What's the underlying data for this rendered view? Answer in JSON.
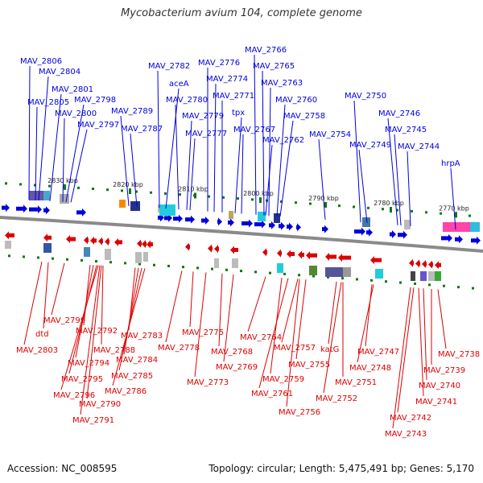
{
  "title": "Mycobacterium avium 104, complete genome",
  "footer": {
    "accession": "Accession: NC_008595",
    "summary": "Topology: circular; Length: 5,475,491 bp; Genes: 5,170"
  },
  "colors": {
    "forward": "#0000dd",
    "reverse": "#dd0000",
    "backbone": "#888888",
    "tick": "#117711"
  },
  "scale": {
    "unit": "kbp",
    "ticks": [
      {
        "label": "2830 kbp",
        "kb": 2830
      },
      {
        "label": "2820 kbp",
        "kb": 2820
      },
      {
        "label": "2810 kbp",
        "kb": 2810
      },
      {
        "label": "2800 kbp",
        "kb": 2800
      },
      {
        "label": "2790 kbp",
        "kb": 2790
      },
      {
        "label": "2780 kbp",
        "kb": 2780
      },
      {
        "label": "2770 kbp",
        "kb": 2770
      }
    ]
  },
  "forward_labels": [
    "MAV_2806",
    "MAV_2804",
    "MAV_2801",
    "MAV_2805",
    "MAV_2798",
    "MAV_2800",
    "MAV_2797",
    "MAV_2789",
    "MAV_2787",
    "MAV_2782",
    "aceA",
    "MAV_2780",
    "MAV_2779",
    "MAV_2777",
    "MAV_2776",
    "MAV_2774",
    "MAV_2771",
    "tpx",
    "MAV_2767",
    "MAV_2766",
    "MAV_2765",
    "MAV_2763",
    "MAV_2760",
    "MAV_2758",
    "MAV_2762",
    "MAV_2754",
    "MAV_2750",
    "MAV_2749",
    "MAV_2746",
    "MAV_2745",
    "MAV_2744",
    "hrpA"
  ],
  "reverse_labels": [
    "MAV_2799",
    "dtd",
    "MAV_2803",
    "MAV_2792",
    "MAV_2794",
    "MAV_2795",
    "MAV_2796",
    "MAV_2788",
    "MAV_2790",
    "MAV_2791",
    "MAV_2783",
    "MAV_2784",
    "MAV_2785",
    "MAV_2786",
    "MAV_2775",
    "MAV_2778",
    "MAV_2773",
    "MAV_2768",
    "MAV_2769",
    "MAV_2764",
    "MAV_2757",
    "MAV_2759",
    "MAV_2761",
    "MAV_2755",
    "MAV_2756",
    "katG",
    "MAV_2751",
    "MAV_2752",
    "MAV_2747",
    "MAV_2748",
    "MAV_2738",
    "MAV_2739",
    "MAV_2740",
    "MAV_2741",
    "MAV_2742",
    "MAV_2743"
  ]
}
